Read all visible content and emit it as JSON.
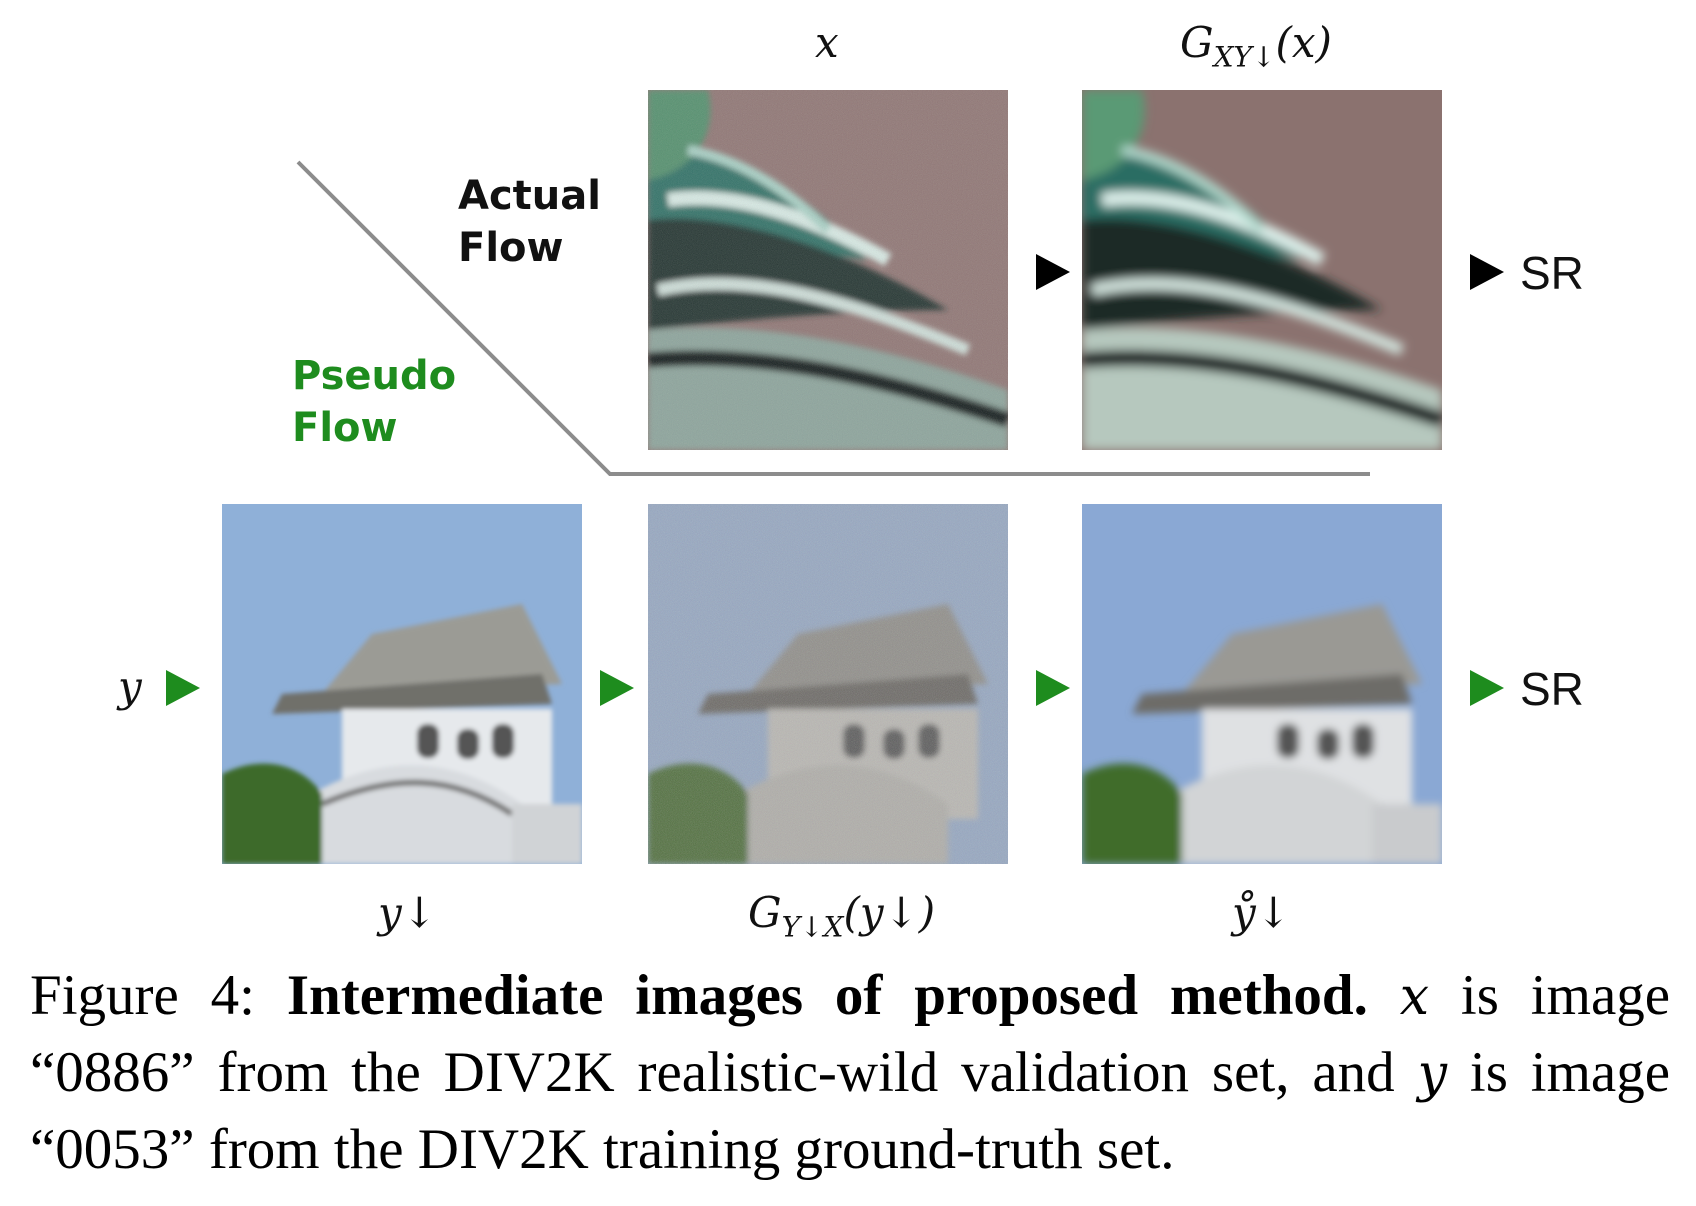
{
  "labels": {
    "x": "x",
    "gxy_main": "G",
    "gxy_sub": "XY↓",
    "gxy_arg": "(x)",
    "y": "y",
    "ydown": "y↓",
    "gyx_main": "G",
    "gyx_sub": "Y↓X",
    "gyx_arg": "(y↓)",
    "yring": "ẙ↓"
  },
  "flows": {
    "actual_line1": "Actual",
    "actual_line2": "Flow",
    "pseudo_line1": "Pseudo",
    "pseudo_line2": "Flow"
  },
  "outputs": {
    "sr_top": "SR",
    "sr_bottom": "SR"
  },
  "colors": {
    "actual": "#111111",
    "pseudo": "#1e8c1e",
    "divider": "#8c8c8c"
  },
  "caption": {
    "prefix": "Figure 4:",
    "title": "Intermediate images of proposed method.",
    "var_x": "x",
    "part1": "is image “0886” from the DIV2K realistic-wild validation set, and",
    "var_y": "y",
    "part2": "is image “0053” from the DIV2K training ground-truth set."
  }
}
